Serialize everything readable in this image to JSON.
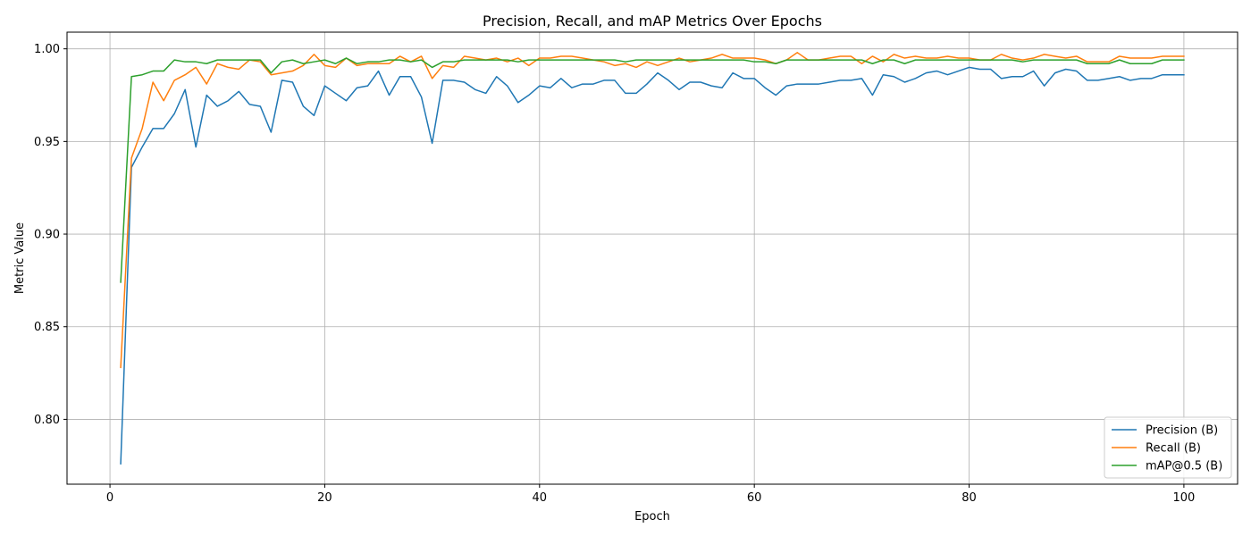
{
  "chart_data": {
    "type": "line",
    "title": "Precision, Recall, and mAP Metrics Over Epochs",
    "xlabel": "Epoch",
    "ylabel": "Metric Value",
    "xlim": [
      -4,
      105
    ],
    "ylim": [
      0.765,
      1.009
    ],
    "xticks": [
      0,
      20,
      40,
      60,
      80,
      100
    ],
    "yticks": [
      0.8,
      0.85,
      0.9,
      0.95,
      1.0
    ],
    "xtick_labels": [
      "0",
      "20",
      "40",
      "60",
      "80",
      "100"
    ],
    "ytick_labels": [
      "0.80",
      "0.85",
      "0.90",
      "0.95",
      "1.00"
    ],
    "grid": true,
    "legend_position": "bottom-right",
    "x": [
      1,
      2,
      3,
      4,
      5,
      6,
      7,
      8,
      9,
      10,
      11,
      12,
      13,
      14,
      15,
      16,
      17,
      18,
      19,
      20,
      21,
      22,
      23,
      24,
      25,
      26,
      27,
      28,
      29,
      30,
      31,
      32,
      33,
      34,
      35,
      36,
      37,
      38,
      39,
      40,
      41,
      42,
      43,
      44,
      45,
      46,
      47,
      48,
      49,
      50,
      51,
      52,
      53,
      54,
      55,
      56,
      57,
      58,
      59,
      60,
      61,
      62,
      63,
      64,
      65,
      66,
      67,
      68,
      69,
      70,
      71,
      72,
      73,
      74,
      75,
      76,
      77,
      78,
      79,
      80,
      81,
      82,
      83,
      84,
      85,
      86,
      87,
      88,
      89,
      90,
      91,
      92,
      93,
      94,
      95,
      96,
      97,
      98,
      99,
      100
    ],
    "series": [
      {
        "name": "Precision (B)",
        "color": "#1f77b4",
        "values": [
          0.776,
          0.936,
          0.947,
          0.957,
          0.957,
          0.965,
          0.978,
          0.947,
          0.975,
          0.969,
          0.972,
          0.977,
          0.97,
          0.969,
          0.955,
          0.983,
          0.982,
          0.969,
          0.964,
          0.98,
          0.976,
          0.972,
          0.979,
          0.98,
          0.988,
          0.975,
          0.985,
          0.985,
          0.974,
          0.949,
          0.983,
          0.983,
          0.982,
          0.978,
          0.976,
          0.985,
          0.98,
          0.971,
          0.975,
          0.98,
          0.979,
          0.984,
          0.979,
          0.981,
          0.981,
          0.983,
          0.983,
          0.976,
          0.976,
          0.981,
          0.987,
          0.983,
          0.978,
          0.982,
          0.982,
          0.98,
          0.979,
          0.987,
          0.984,
          0.984,
          0.979,
          0.975,
          0.98,
          0.981,
          0.981,
          0.981,
          0.982,
          0.983,
          0.983,
          0.984,
          0.975,
          0.986,
          0.985,
          0.982,
          0.984,
          0.987,
          0.988,
          0.986,
          0.988,
          0.99,
          0.989,
          0.989,
          0.984,
          0.985,
          0.985,
          0.988,
          0.98,
          0.987,
          0.989,
          0.988,
          0.983,
          0.983,
          0.984,
          0.985,
          0.983,
          0.984,
          0.984,
          0.986,
          0.986,
          0.986
        ]
      },
      {
        "name": "Recall (B)",
        "color": "#ff7f0e",
        "values": [
          0.828,
          0.941,
          0.957,
          0.982,
          0.972,
          0.983,
          0.986,
          0.99,
          0.981,
          0.992,
          0.99,
          0.989,
          0.994,
          0.993,
          0.986,
          0.987,
          0.988,
          0.991,
          0.997,
          0.991,
          0.99,
          0.995,
          0.991,
          0.992,
          0.992,
          0.992,
          0.996,
          0.993,
          0.996,
          0.984,
          0.991,
          0.99,
          0.996,
          0.995,
          0.994,
          0.995,
          0.993,
          0.995,
          0.991,
          0.995,
          0.995,
          0.996,
          0.996,
          0.995,
          0.994,
          0.993,
          0.991,
          0.992,
          0.99,
          0.993,
          0.991,
          0.993,
          0.995,
          0.993,
          0.994,
          0.995,
          0.997,
          0.995,
          0.995,
          0.995,
          0.994,
          0.992,
          0.994,
          0.998,
          0.994,
          0.994,
          0.995,
          0.996,
          0.996,
          0.992,
          0.996,
          0.993,
          0.997,
          0.995,
          0.996,
          0.995,
          0.995,
          0.996,
          0.995,
          0.995,
          0.994,
          0.994,
          0.997,
          0.995,
          0.994,
          0.995,
          0.997,
          0.996,
          0.995,
          0.996,
          0.993,
          0.993,
          0.993,
          0.996,
          0.995,
          0.995,
          0.995,
          0.996,
          0.996,
          0.996
        ]
      },
      {
        "name": "mAP@0.5 (B)",
        "color": "#2ca02c",
        "values": [
          0.874,
          0.985,
          0.986,
          0.988,
          0.988,
          0.994,
          0.993,
          0.993,
          0.992,
          0.994,
          0.994,
          0.994,
          0.994,
          0.994,
          0.987,
          0.993,
          0.994,
          0.992,
          0.993,
          0.994,
          0.992,
          0.995,
          0.992,
          0.993,
          0.993,
          0.994,
          0.994,
          0.993,
          0.994,
          0.99,
          0.993,
          0.993,
          0.994,
          0.994,
          0.994,
          0.994,
          0.994,
          0.993,
          0.994,
          0.994,
          0.994,
          0.994,
          0.994,
          0.994,
          0.994,
          0.994,
          0.994,
          0.993,
          0.994,
          0.994,
          0.994,
          0.994,
          0.994,
          0.994,
          0.994,
          0.994,
          0.994,
          0.994,
          0.994,
          0.993,
          0.993,
          0.992,
          0.994,
          0.994,
          0.994,
          0.994,
          0.994,
          0.994,
          0.994,
          0.994,
          0.992,
          0.994,
          0.994,
          0.992,
          0.994,
          0.994,
          0.994,
          0.994,
          0.994,
          0.994,
          0.994,
          0.994,
          0.994,
          0.994,
          0.993,
          0.994,
          0.994,
          0.994,
          0.994,
          0.994,
          0.992,
          0.992,
          0.992,
          0.994,
          0.992,
          0.992,
          0.992,
          0.994,
          0.994,
          0.994
        ]
      }
    ]
  }
}
